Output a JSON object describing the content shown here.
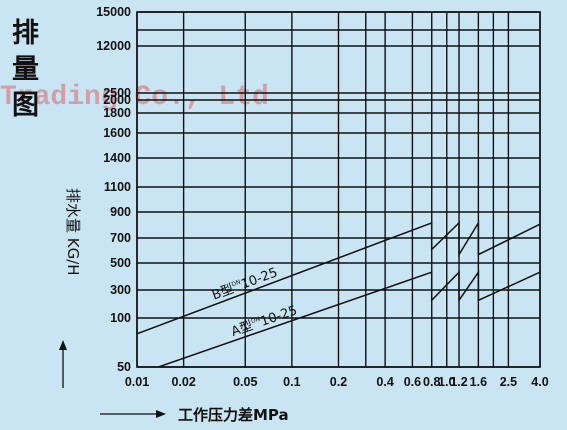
{
  "title_chars": [
    "排",
    "量",
    "图"
  ],
  "watermark": "Trading Co., Ltd",
  "chart_data": {
    "type": "line",
    "title": "排量图",
    "xlabel": "工作压力差MPa",
    "ylabel": "排水量 KG/H",
    "x_scale": "log",
    "y_scale": "custom",
    "xlim": [
      0.01,
      4.0
    ],
    "ylim": [
      50,
      15000
    ],
    "x_ticks": [
      {
        "v": 0.01,
        "label": "0.01"
      },
      {
        "v": 0.02,
        "label": "0.02"
      },
      {
        "v": 0.05,
        "label": "0.05"
      },
      {
        "v": 0.1,
        "label": "0.1"
      },
      {
        "v": 0.2,
        "label": "0.2"
      },
      {
        "v": 0.4,
        "label": "0.4"
      },
      {
        "v": 0.6,
        "label": "0.6"
      },
      {
        "v": 0.8,
        "label": "0.8"
      },
      {
        "v": 1.0,
        "label": "1.0"
      },
      {
        "v": 1.2,
        "label": "1.2"
      },
      {
        "v": 1.6,
        "label": "1.6"
      },
      {
        "v": 2.5,
        "label": "2.5"
      },
      {
        "v": 4.0,
        "label": "4.0"
      }
    ],
    "x_grid": [
      0.01,
      0.02,
      0.05,
      0.1,
      0.2,
      0.3,
      0.4,
      0.6,
      0.8,
      1.0,
      1.2,
      1.6,
      2.0,
      2.5,
      4.0
    ],
    "y_ticks": [
      {
        "v": 50,
        "label": "50"
      },
      {
        "v": 100,
        "label": "100"
      },
      {
        "v": 300,
        "label": "300"
      },
      {
        "v": 500,
        "label": "500"
      },
      {
        "v": 700,
        "label": "700"
      },
      {
        "v": 900,
        "label": "900"
      },
      {
        "v": 1100,
        "label": "1100"
      },
      {
        "v": 1400,
        "label": "1400"
      },
      {
        "v": 1600,
        "label": "1600"
      },
      {
        "v": 1800,
        "label": "1800"
      },
      {
        "v": 2000,
        "label": "2000"
      },
      {
        "v": 2500,
        "label": "2500"
      },
      {
        "v": 12000,
        "label": "12000"
      },
      {
        "v": 15000,
        "label": "15000"
      }
    ],
    "y_grid": [
      50,
      100,
      300,
      500,
      700,
      900,
      1100,
      1400,
      1600,
      1800,
      2000,
      2500,
      12000,
      14000,
      15000
    ],
    "series": [
      {
        "name": "B型",
        "label_main": "B型",
        "label_sup": "DN",
        "label_tail": "10-25",
        "points": [
          [
            0.01,
            80
          ],
          [
            0.8,
            810
          ],
          [
            0.8,
            600
          ],
          [
            1.2,
            810
          ],
          [
            1.2,
            560
          ],
          [
            1.6,
            810
          ],
          [
            1.6,
            560
          ],
          [
            4.0,
            800
          ]
        ]
      },
      {
        "name": "A型",
        "label_main": "A型",
        "label_sup": "DN",
        "label_tail": "10-25",
        "points": [
          [
            0.01,
            45
          ],
          [
            0.8,
            420
          ],
          [
            0.8,
            200
          ],
          [
            1.2,
            420
          ],
          [
            1.2,
            200
          ],
          [
            1.6,
            420
          ],
          [
            1.6,
            200
          ],
          [
            4.0,
            420
          ]
        ]
      }
    ]
  }
}
